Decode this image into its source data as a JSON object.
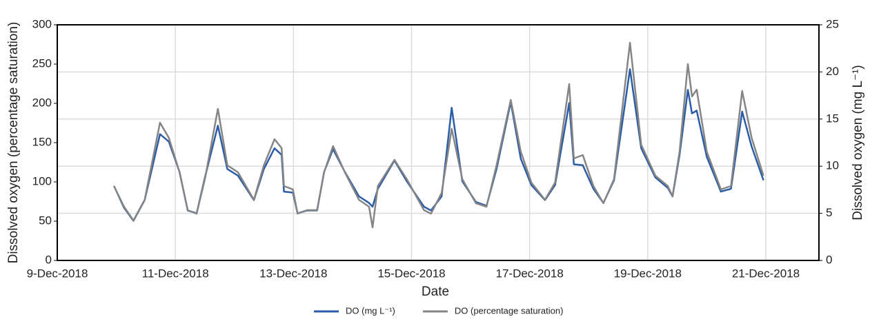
{
  "chart_data": {
    "type": "line",
    "xlabel": "Date",
    "ylabel": "Dissolved oxygen (percentage saturation)",
    "y2label": "Dissolved oxygen (mg L⁻¹)",
    "xlim": [
      0,
      12.9
    ],
    "xticks": [
      {
        "value": 0,
        "label": "9-Dec-2018"
      },
      {
        "value": 2,
        "label": "11-Dec-2018"
      },
      {
        "value": 4,
        "label": "13-Dec-2018"
      },
      {
        "value": 6,
        "label": "15-Dec-2018"
      },
      {
        "value": 8,
        "label": "17-Dec-2018"
      },
      {
        "value": 10,
        "label": "19-Dec-2018"
      },
      {
        "value": 12,
        "label": "21-Dec-2018"
      }
    ],
    "ylim": [
      0,
      300
    ],
    "yticks": [
      0,
      50,
      100,
      150,
      200,
      250,
      300
    ],
    "y2lim": [
      0,
      25
    ],
    "y2ticks": [
      0,
      5,
      10,
      15,
      20,
      25
    ],
    "grid": true,
    "legend": "bottom",
    "x": [
      0.96,
      1.13,
      1.29,
      1.48,
      1.74,
      1.89,
      2.07,
      2.21,
      2.36,
      2.5,
      2.72,
      2.88,
      3.06,
      3.33,
      3.5,
      3.68,
      3.8,
      3.84,
      3.99,
      4.07,
      4.23,
      4.4,
      4.52,
      4.67,
      4.87,
      5.11,
      5.28,
      5.34,
      5.43,
      5.71,
      5.92,
      6.21,
      6.33,
      6.51,
      6.68,
      6.86,
      7.09,
      7.27,
      7.44,
      7.68,
      7.85,
      8.03,
      8.26,
      8.43,
      8.67,
      8.75,
      8.9,
      9.08,
      9.25,
      9.43,
      9.7,
      9.89,
      10.13,
      10.34,
      10.42,
      10.54,
      10.68,
      10.75,
      10.83,
      11.0,
      11.24,
      11.41,
      11.6,
      11.76,
      11.96
    ],
    "series": [
      {
        "name": "DO (mg L⁻¹)",
        "color": "#2b5ca8",
        "axis": "y2",
        "values": [
          7.9,
          5.6,
          4.2,
          6.4,
          13.4,
          12.6,
          9.4,
          5.3,
          5.0,
          8.8,
          14.3,
          9.7,
          9.0,
          6.4,
          9.7,
          11.9,
          11.2,
          7.3,
          7.2,
          5.0,
          5.3,
          5.3,
          9.4,
          11.8,
          9.4,
          6.8,
          6.1,
          5.7,
          7.6,
          10.6,
          8.4,
          5.7,
          5.3,
          6.8,
          16.2,
          8.4,
          6.2,
          5.8,
          9.7,
          16.8,
          10.8,
          8.0,
          6.4,
          8.0,
          16.7,
          10.2,
          10.1,
          7.6,
          6.1,
          8.5,
          20.3,
          11.9,
          8.8,
          7.7,
          6.8,
          11.2,
          18.1,
          15.6,
          15.9,
          11.0,
          7.3,
          7.6,
          15.8,
          12.1,
          8.5
        ]
      },
      {
        "name": "DO (percentage saturation)",
        "color": "#858585",
        "values": [
          94.7,
          68.4,
          50.9,
          77.2,
          175.4,
          156.1,
          112.3,
          64.0,
          59.6,
          103.5,
          193.0,
          121.1,
          112.3,
          77.2,
          121.1,
          154.4,
          143.0,
          94.7,
          90.4,
          59.6,
          64.0,
          64.0,
          112.3,
          145.6,
          112.3,
          77.2,
          68.4,
          42.1,
          94.7,
          128.1,
          103.5,
          64.0,
          59.6,
          86.0,
          167.5,
          103.5,
          72.8,
          68.4,
          121.1,
          204.4,
          138.6,
          99.1,
          77.2,
          99.1,
          224.6,
          129.8,
          134.2,
          94.7,
          72.8,
          103.5,
          277.2,
          147.4,
          107.9,
          94.7,
          81.6,
          138.6,
          250.0,
          208.8,
          217.5,
          138.6,
          90.4,
          94.7,
          215.8,
          156.1,
          107.9
        ]
      }
    ]
  }
}
